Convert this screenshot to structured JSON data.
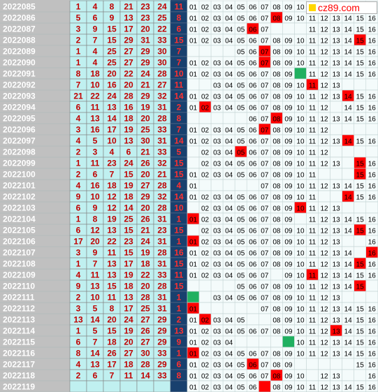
{
  "chart_data": {
    "type": "table",
    "columns": [
      "issue",
      "n1",
      "n2",
      "n3",
      "n4",
      "n5",
      "n6",
      "blue",
      "blue_distribution"
    ],
    "blue_range": [
      1,
      16
    ],
    "rows": [
      {
        "issue": "2022085",
        "reds": [
          "1",
          "4",
          "8",
          "21",
          "23",
          "24"
        ],
        "blue": "11",
        "dist_cols": [
          1,
          2,
          3,
          4,
          5,
          6,
          7,
          8,
          9,
          10
        ],
        "hits": []
      },
      {
        "issue": "2022086",
        "reds": [
          "5",
          "6",
          "9",
          "13",
          "23",
          "25"
        ],
        "blue": "8",
        "dist_cols": [
          1,
          2,
          3,
          4,
          5,
          6,
          7,
          8,
          9,
          10,
          11,
          12,
          13,
          14,
          15,
          16
        ],
        "hits": [
          8
        ]
      },
      {
        "issue": "2022087",
        "reds": [
          "3",
          "9",
          "15",
          "17",
          "20",
          "22"
        ],
        "blue": "6",
        "dist_cols": [
          1,
          2,
          3,
          4,
          5,
          6,
          7,
          11,
          12,
          13,
          14,
          15,
          16
        ],
        "hits": [
          6
        ]
      },
      {
        "issue": "2022088",
        "reds": [
          "2",
          "7",
          "15",
          "29",
          "31",
          "33"
        ],
        "blue": "15",
        "dist_cols": [
          1,
          2,
          3,
          4,
          5,
          6,
          7,
          8,
          9,
          10,
          11,
          12,
          13,
          14,
          15,
          16
        ],
        "hits": [
          15
        ]
      },
      {
        "issue": "2022089",
        "reds": [
          "1",
          "4",
          "25",
          "27",
          "29",
          "30"
        ],
        "blue": "7",
        "dist_cols": [
          5,
          6,
          7,
          8,
          9,
          10,
          11,
          12,
          13,
          14,
          15,
          16
        ],
        "hits": [
          7
        ]
      },
      {
        "issue": "2022090",
        "reds": [
          "1",
          "4",
          "25",
          "27",
          "29",
          "30"
        ],
        "blue": "7",
        "dist_cols": [
          1,
          2,
          3,
          4,
          5,
          6,
          7,
          8,
          9,
          10,
          11,
          12,
          13,
          14,
          15,
          16
        ],
        "hits": [
          7
        ]
      },
      {
        "issue": "2022091",
        "reds": [
          "8",
          "18",
          "20",
          "22",
          "24",
          "28"
        ],
        "blue": "10",
        "dist_cols": [
          1,
          2,
          3,
          4,
          5,
          6,
          7,
          8,
          9,
          10,
          11,
          12,
          13,
          14,
          15,
          16
        ],
        "hits": [],
        "special": [
          10
        ]
      },
      {
        "issue": "2022092",
        "reds": [
          "7",
          "10",
          "16",
          "20",
          "21",
          "27"
        ],
        "blue": "11",
        "dist_cols": [
          3,
          4,
          5,
          6,
          7,
          8,
          9,
          10,
          11,
          12,
          13
        ],
        "hits": [
          11
        ]
      },
      {
        "issue": "2022093",
        "reds": [
          "21",
          "22",
          "24",
          "28",
          "29",
          "32"
        ],
        "blue": "14",
        "dist_cols": [
          1,
          2,
          3,
          4,
          5,
          6,
          7,
          8,
          9,
          10,
          11,
          12,
          13,
          14,
          15,
          16
        ],
        "hits": [
          14
        ]
      },
      {
        "issue": "2022094",
        "reds": [
          "6",
          "11",
          "13",
          "16",
          "19",
          "31"
        ],
        "blue": "2",
        "dist_cols": [
          1,
          2,
          3,
          4,
          5,
          6,
          7,
          8,
          9,
          10,
          11,
          12,
          14,
          15,
          16
        ],
        "hits": [
          2
        ]
      },
      {
        "issue": "2022095",
        "reds": [
          "4",
          "13",
          "14",
          "18",
          "20",
          "28"
        ],
        "blue": "8",
        "dist_cols": [
          6,
          7,
          8,
          9,
          10,
          11,
          12,
          13,
          14,
          15,
          16
        ],
        "hits": [
          8
        ]
      },
      {
        "issue": "2022096",
        "reds": [
          "3",
          "16",
          "17",
          "19",
          "25",
          "33"
        ],
        "blue": "7",
        "dist_cols": [
          1,
          2,
          3,
          4,
          5,
          6,
          7,
          8,
          9,
          10,
          11,
          12
        ],
        "hits": [
          7
        ]
      },
      {
        "issue": "2022097",
        "reds": [
          "4",
          "5",
          "10",
          "13",
          "30",
          "31"
        ],
        "blue": "14",
        "dist_cols": [
          1,
          2,
          3,
          4,
          5,
          6,
          7,
          8,
          9,
          10,
          11,
          12,
          13,
          14,
          15,
          16
        ],
        "hits": [
          14
        ]
      },
      {
        "issue": "2022098",
        "reds": [
          "2",
          "3",
          "4",
          "6",
          "21",
          "33"
        ],
        "blue": "5",
        "dist_cols": [
          2,
          3,
          4,
          5,
          6,
          7,
          8,
          9,
          10,
          11,
          12
        ],
        "hits": [
          5
        ]
      },
      {
        "issue": "2022099",
        "reds": [
          "1",
          "11",
          "23",
          "24",
          "26",
          "32"
        ],
        "blue": "15",
        "dist_cols": [
          2,
          3,
          4,
          5,
          6,
          7,
          8,
          9,
          10,
          11,
          12,
          13,
          15,
          16
        ],
        "hits": [
          15
        ]
      },
      {
        "issue": "2022100",
        "reds": [
          "2",
          "6",
          "7",
          "15",
          "20",
          "21"
        ],
        "blue": "15",
        "dist_cols": [
          1,
          2,
          3,
          4,
          5,
          6,
          7,
          8,
          9,
          10,
          11,
          15,
          16
        ],
        "hits": [
          15
        ]
      },
      {
        "issue": "2022101",
        "reds": [
          "4",
          "16",
          "18",
          "19",
          "27",
          "28"
        ],
        "blue": "4",
        "dist_cols": [
          1,
          7,
          8,
          9,
          10,
          11,
          12,
          13,
          14,
          15,
          16
        ],
        "hits": []
      },
      {
        "issue": "2022102",
        "reds": [
          "9",
          "10",
          "12",
          "18",
          "29",
          "32"
        ],
        "blue": "14",
        "dist_cols": [
          1,
          2,
          3,
          4,
          5,
          6,
          7,
          8,
          9,
          10,
          11,
          14,
          15,
          16
        ],
        "hits": [
          14
        ]
      },
      {
        "issue": "2022103",
        "reds": [
          "6",
          "9",
          "12",
          "14",
          "20",
          "28"
        ],
        "blue": "10",
        "dist_cols": [
          2,
          3,
          4,
          5,
          6,
          7,
          8,
          9,
          10,
          11,
          12,
          13
        ],
        "hits": [
          10
        ]
      },
      {
        "issue": "2022104",
        "reds": [
          "1",
          "8",
          "19",
          "25",
          "26",
          "31"
        ],
        "blue": "1",
        "dist_cols": [
          1,
          2,
          3,
          4,
          5,
          6,
          7,
          8,
          9,
          11,
          12,
          13,
          14,
          15,
          16
        ],
        "hits": [
          1
        ]
      },
      {
        "issue": "2022105",
        "reds": [
          "6",
          "12",
          "13",
          "15",
          "21",
          "23"
        ],
        "blue": "15",
        "dist_cols": [
          2,
          3,
          4,
          5,
          6,
          7,
          8,
          9,
          10,
          11,
          12,
          13,
          14,
          15,
          16
        ],
        "hits": [
          15
        ]
      },
      {
        "issue": "2022106",
        "reds": [
          "17",
          "20",
          "22",
          "23",
          "24",
          "31"
        ],
        "blue": "1",
        "dist_cols": [
          1,
          2,
          3,
          4,
          5,
          6,
          7,
          8,
          9,
          10,
          11,
          12,
          13,
          16
        ],
        "hits": [
          1
        ]
      },
      {
        "issue": "2022107",
        "reds": [
          "3",
          "9",
          "11",
          "15",
          "19",
          "28"
        ],
        "blue": "16",
        "dist_cols": [
          1,
          2,
          3,
          4,
          5,
          6,
          7,
          8,
          9,
          10,
          11,
          12,
          13,
          14,
          16
        ],
        "hits": [
          16
        ]
      },
      {
        "issue": "2022108",
        "reds": [
          "1",
          "7",
          "13",
          "17",
          "18",
          "31"
        ],
        "blue": "15",
        "dist_cols": [
          1,
          2,
          3,
          4,
          5,
          6,
          7,
          8,
          9,
          10,
          11,
          12,
          13,
          14,
          15,
          16
        ],
        "hits": [
          15
        ]
      },
      {
        "issue": "2022109",
        "reds": [
          "4",
          "11",
          "13",
          "19",
          "22",
          "33"
        ],
        "blue": "11",
        "dist_cols": [
          1,
          2,
          3,
          4,
          5,
          6,
          7,
          9,
          10,
          11,
          12,
          13,
          14,
          15,
          16
        ],
        "hits": [
          11
        ]
      },
      {
        "issue": "2022110",
        "reds": [
          "9",
          "13",
          "15",
          "18",
          "20",
          "28"
        ],
        "blue": "15",
        "dist_cols": [
          5,
          6,
          7,
          8,
          9,
          10,
          11,
          12,
          13,
          14,
          15
        ],
        "hits": [
          15
        ]
      },
      {
        "issue": "2022111",
        "reds": [
          "2",
          "10",
          "11",
          "13",
          "28",
          "31"
        ],
        "blue": "1",
        "dist_cols": [
          1,
          3,
          4,
          5,
          6,
          7,
          8,
          9,
          10,
          11,
          12,
          13
        ],
        "hits": [],
        "special": [
          1
        ]
      },
      {
        "issue": "2022112",
        "reds": [
          "3",
          "5",
          "8",
          "17",
          "25",
          "31"
        ],
        "blue": "1",
        "dist_cols": [
          1,
          7,
          8,
          9,
          10,
          11,
          12,
          13,
          14,
          15,
          16
        ],
        "hits": [
          1
        ]
      },
      {
        "issue": "2022113",
        "reds": [
          "13",
          "14",
          "20",
          "24",
          "27",
          "29"
        ],
        "blue": "2",
        "dist_cols": [
          1,
          2,
          3,
          4,
          5,
          8,
          9,
          10,
          11,
          12,
          13,
          14,
          15,
          16
        ],
        "hits": [
          2
        ]
      },
      {
        "issue": "2022114",
        "reds": [
          "1",
          "5",
          "15",
          "19",
          "26",
          "29"
        ],
        "blue": "13",
        "dist_cols": [
          1,
          2,
          3,
          4,
          5,
          6,
          7,
          8,
          9,
          10,
          11,
          12,
          13,
          14,
          15,
          16
        ],
        "hits": [
          13
        ]
      },
      {
        "issue": "2022115",
        "reds": [
          "6",
          "7",
          "18",
          "20",
          "27",
          "29"
        ],
        "blue": "9",
        "dist_cols": [
          1,
          2,
          3,
          4,
          9,
          10,
          11,
          12,
          13,
          14,
          15,
          16
        ],
        "hits": [],
        "special": [
          9
        ]
      },
      {
        "issue": "2022116",
        "reds": [
          "8",
          "14",
          "26",
          "27",
          "30",
          "33"
        ],
        "blue": "1",
        "dist_cols": [
          1,
          2,
          3,
          4,
          5,
          6,
          7,
          8,
          9,
          10,
          11,
          12,
          13,
          14,
          15,
          16
        ],
        "hits": [
          1
        ]
      },
      {
        "issue": "2022117",
        "reds": [
          "4",
          "13",
          "17",
          "18",
          "28",
          "29"
        ],
        "blue": "6",
        "dist_cols": [
          1,
          2,
          3,
          4,
          5,
          6,
          7,
          8,
          9,
          15,
          16
        ],
        "hits": [
          6
        ]
      },
      {
        "issue": "2022118",
        "reds": [
          "2",
          "6",
          "7",
          "11",
          "14",
          "33"
        ],
        "blue": "8",
        "dist_cols": [
          1,
          2,
          3,
          4,
          5,
          6,
          7,
          8,
          9,
          10,
          12,
          13,
          16
        ],
        "hits": [
          8
        ]
      },
      {
        "issue": "2022119",
        "reds": [
          "",
          "",
          "",
          "",
          "",
          ""
        ],
        "blue": "",
        "dist_cols": [
          1,
          2,
          3,
          4,
          5,
          6,
          7,
          8,
          9,
          10,
          11,
          12,
          13,
          14,
          15,
          16
        ],
        "hits": [],
        "special_red": [
          7
        ]
      }
    ],
    "colors": {
      "issue_bg": "#c0c0c0",
      "red_bg": "#c0f0f0",
      "red_text": "#c00000",
      "blue_bg": "#18406e",
      "blue_text": "#ff3030",
      "hit_bg": "#ff0000",
      "special_bg": "#20b060",
      "grid": "#808080"
    }
  },
  "logo": {
    "text": "cz89.com"
  }
}
